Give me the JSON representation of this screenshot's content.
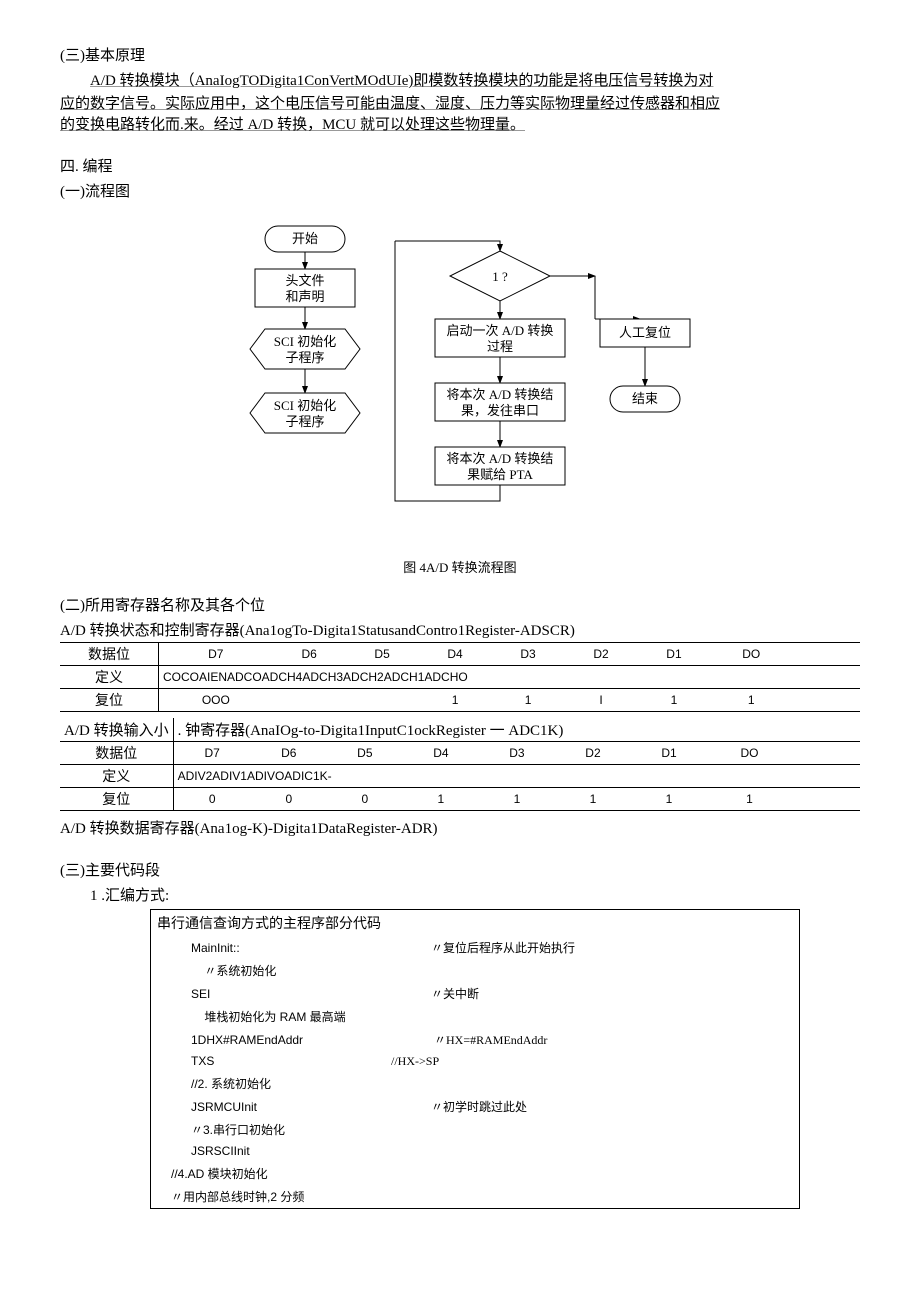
{
  "section3": {
    "heading": "(三)基本原理",
    "para1": "A/D 转换模块（AnaIogTODigita1ConVertMOdUIe)即模数转换模块的功能是将电压信号转换为对",
    "para2": "应的数字信号。实际应用中，这个电压信号可能由温度、湿度、压力等实际物理量经过传感器和相应",
    "para3": "的变换电路转化而.来。经过 A/D 转换，MCU 就可以处理这些物理量。"
  },
  "section4": {
    "heading": "四. 编程",
    "sub1": "(一)流程图"
  },
  "flow": {
    "start": "开始",
    "header": "头文件\n和声明",
    "sci1": "SCI 初始化\n子程序",
    "sci2": "SCI 初始化\n子程序",
    "decision": "1 ?",
    "startad": "启动一次 A/D 转换\n过程",
    "manual": "人工复位",
    "send": "将本次 A/D 转换结\n果，发往串口",
    "end": "结束",
    "assign": "将本次 A/D 转换结\n果赋给 PTA",
    "caption": "图 4A/D 转换流程图"
  },
  "regs": {
    "heading": "(二)所用寄存器名称及其各个位",
    "adscr_title": "A/D 转换状态和控制寄存器(Ana1ogTo-Digita1StatusandContro1Register-ADSCR)",
    "cols": [
      "数据位",
      "D7",
      "D6",
      "D5",
      "D4",
      "D3",
      "D2",
      "D1",
      "DO",
      ""
    ],
    "adscr_def_label": "定义",
    "adscr_def": "COCOAIENADCOADCH4ADCH3ADCH2ADCH1ADCHO",
    "adscr_reset": [
      "复位",
      "OOO",
      "",
      "",
      "1",
      "1",
      "I",
      "1",
      "1",
      ""
    ],
    "adc1k_title_pre": "A/D 转换输入小",
    "adc1k_title_rest": ". 钟寄存器(AnaIOg-to-Digita1InputC1ockRegister 一 ADC1K)",
    "adc1k_def_label": "定义",
    "adc1k_def": "ADIV2ADIV1ADIVOADIC1K-",
    "adc1k_reset": [
      "复位",
      "0",
      "0",
      "0",
      "1",
      "1",
      "1",
      "1",
      "1",
      ""
    ],
    "adr_title": "A/D 转换数据寄存器(Ana1og-K)-Digita1DataRegister-ADR)"
  },
  "code": {
    "heading": "(三)主要代码段",
    "sub": "1 .汇编方式:",
    "box_title": "串行通信查询方式的主程序部分代码",
    "lines": [
      {
        "l": "MainInit::",
        "c": "〃复位后程序从此开始执行"
      },
      {
        "l": "    〃系统初始化",
        "c": ""
      },
      {
        "l": "SEI",
        "c": "〃关中断"
      },
      {
        "l": "    堆栈初始化为 RAM 最高端",
        "c": ""
      },
      {
        "l": "1DHX#RAMEndAddr",
        "c": " 〃HX=#RAMEndAddr"
      },
      {
        "l": "TXS",
        "c": "//HX->SP",
        "off": 200
      },
      {
        "l": "//2. 系统初始化",
        "c": ""
      },
      {
        "l": "JSRMCUInit",
        "c": "〃初学时跳过此处"
      },
      {
        "l": "〃3.串行口初始化",
        "c": ""
      },
      {
        "l": "JSRSCIInit",
        "c": ""
      },
      {
        "l2": "//4.AD 模块初始化"
      },
      {
        "l2": "〃用内部总线时钟,2 分频"
      }
    ]
  }
}
